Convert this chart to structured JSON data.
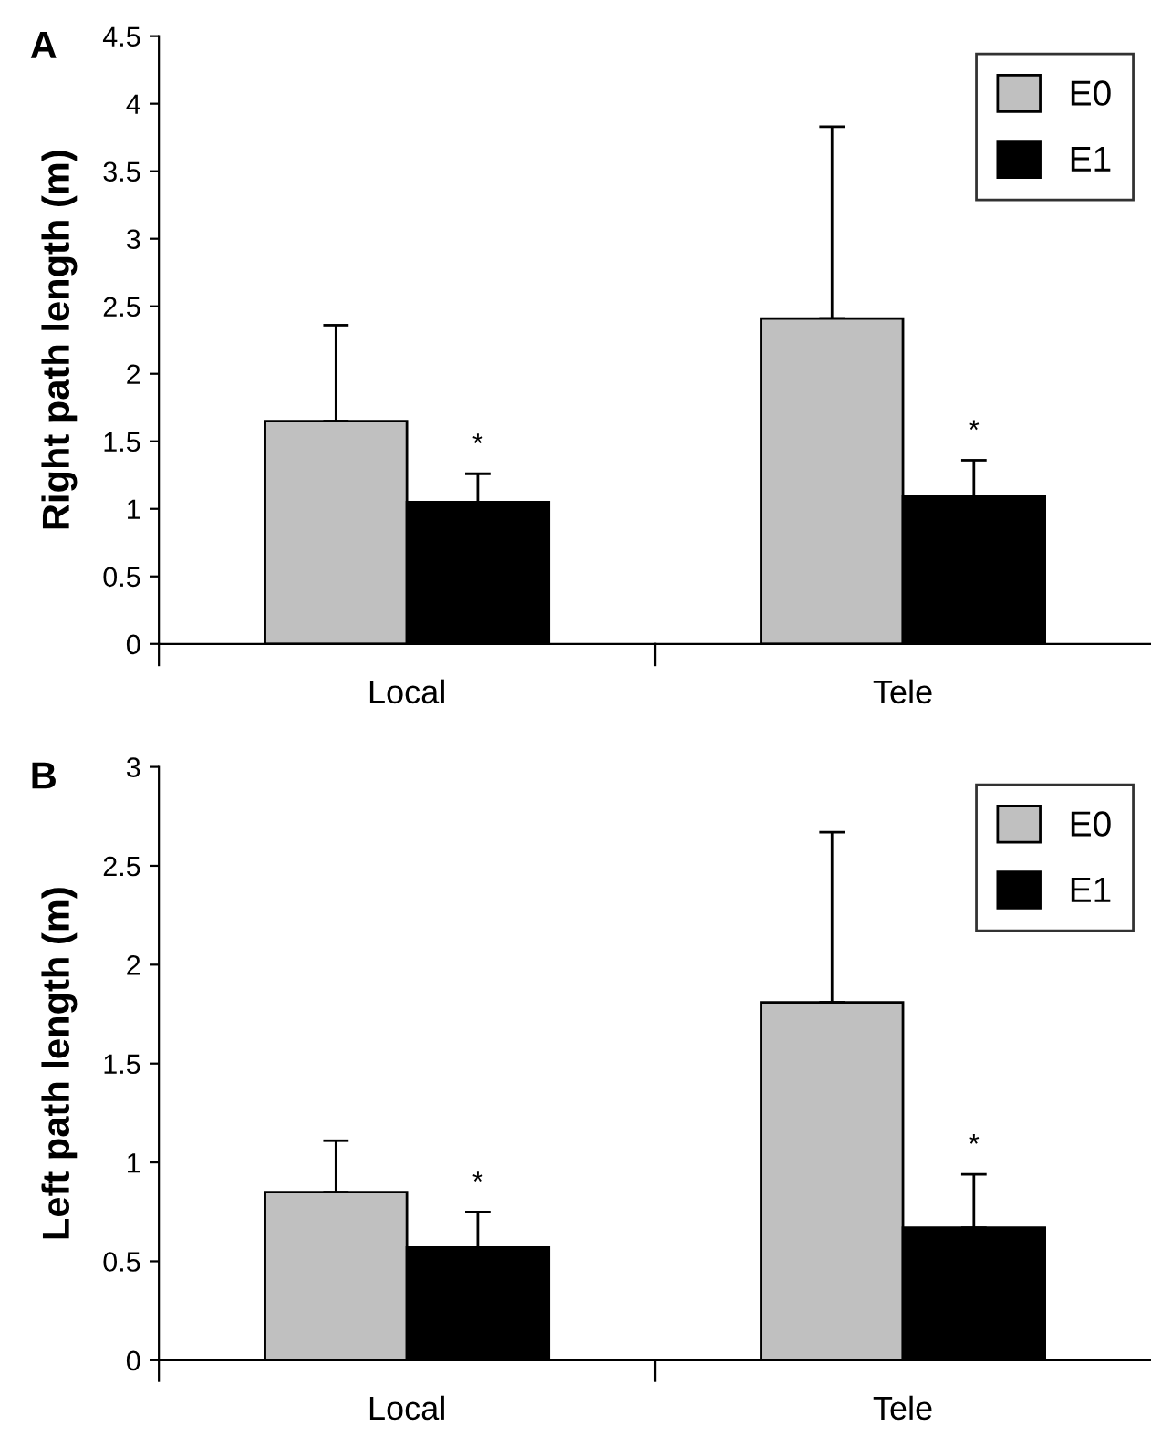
{
  "chart_data": [
    {
      "type": "bar",
      "title": "A",
      "ylabel": "Right path length (m)",
      "categories": [
        "Local",
        "Tele"
      ],
      "ylim": [
        0,
        4.5
      ],
      "yticks": [
        0,
        0.5,
        1,
        1.5,
        2,
        2.5,
        3,
        3.5,
        4,
        4.5
      ],
      "legend": "top right",
      "grid": false,
      "series": [
        {
          "name": "E0",
          "color": "#c0c0c0",
          "values": [
            1.65,
            2.41
          ],
          "errors": [
            [
              1.65,
              2.36
            ],
            [
              2.41,
              3.83
            ]
          ]
        },
        {
          "name": "E1",
          "color": "#000000",
          "values": [
            1.05,
            1.09
          ],
          "errors": [
            [
              1.05,
              1.26
            ],
            [
              1.09,
              1.36
            ]
          ]
        }
      ],
      "annotations": [
        "*",
        "*"
      ]
    },
    {
      "type": "bar",
      "title": "B",
      "ylabel": "Left path length (m)",
      "categories": [
        "Local",
        "Tele"
      ],
      "ylim": [
        0,
        3
      ],
      "yticks": [
        0,
        0.5,
        1,
        1.5,
        2,
        2.5,
        3
      ],
      "legend": "top right",
      "grid": false,
      "series": [
        {
          "name": "E0",
          "color": "#c0c0c0",
          "values": [
            0.85,
            1.81
          ],
          "errors": [
            [
              0.85,
              1.11
            ],
            [
              1.81,
              2.67
            ]
          ]
        },
        {
          "name": "E1",
          "color": "#000000",
          "values": [
            0.57,
            0.67
          ],
          "errors": [
            [
              0.57,
              0.75
            ],
            [
              0.67,
              0.94
            ]
          ]
        }
      ],
      "annotations": [
        "*",
        "*"
      ]
    }
  ]
}
